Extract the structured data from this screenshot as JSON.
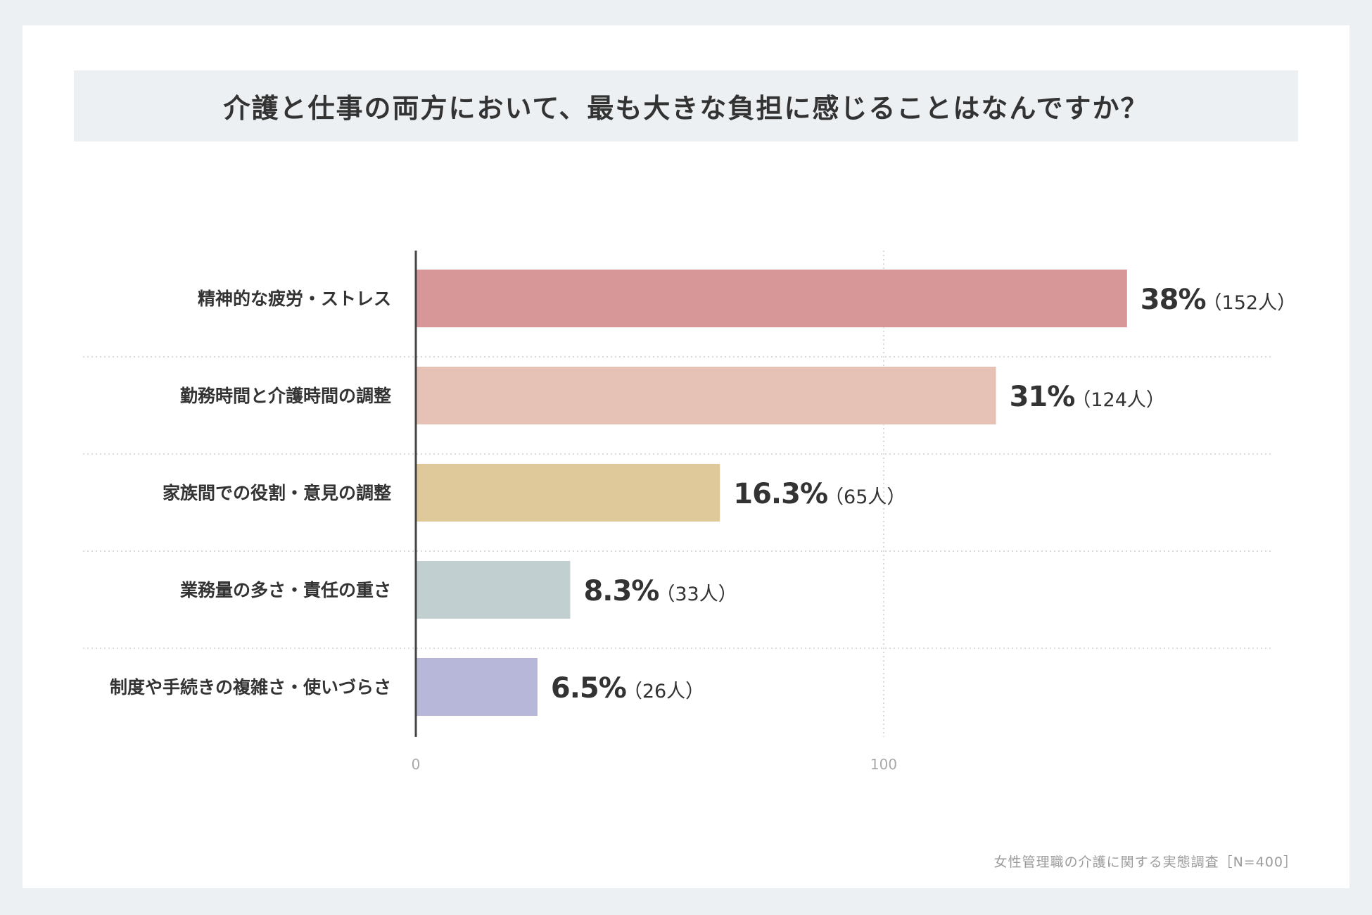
{
  "chart_data": {
    "type": "bar",
    "orientation": "horizontal",
    "title": "介護と仕事の両方において、最も大きな負担に感じることはなんですか？",
    "categories": [
      "精神的な疲労・ストレス",
      "勤務時間と介護時間の調整",
      "家族間での役割・意見の調整",
      "業務量の多さ・責任の重さ",
      "制度や手続きの複雑さ・使いづらさ"
    ],
    "values": [
      152,
      124,
      65,
      33,
      26
    ],
    "percent_labels": [
      "38%",
      "31%",
      "16.3%",
      "8.3%",
      "6.5%"
    ],
    "count_labels": [
      "（152人）",
      "（124人）",
      "（65人）",
      "（33人）",
      "（26人）"
    ],
    "colors": [
      "#d79698",
      "#e6c1b6",
      "#dfc899",
      "#c1cfd1",
      "#b7b7da"
    ],
    "xlim": [
      0,
      180
    ],
    "x_ticks": [
      0,
      100
    ],
    "x_tick_labels": [
      "0",
      "100"
    ],
    "grid": true
  },
  "footer": {
    "source": "女性管理職の介護に関する実態調査［N=400］"
  }
}
